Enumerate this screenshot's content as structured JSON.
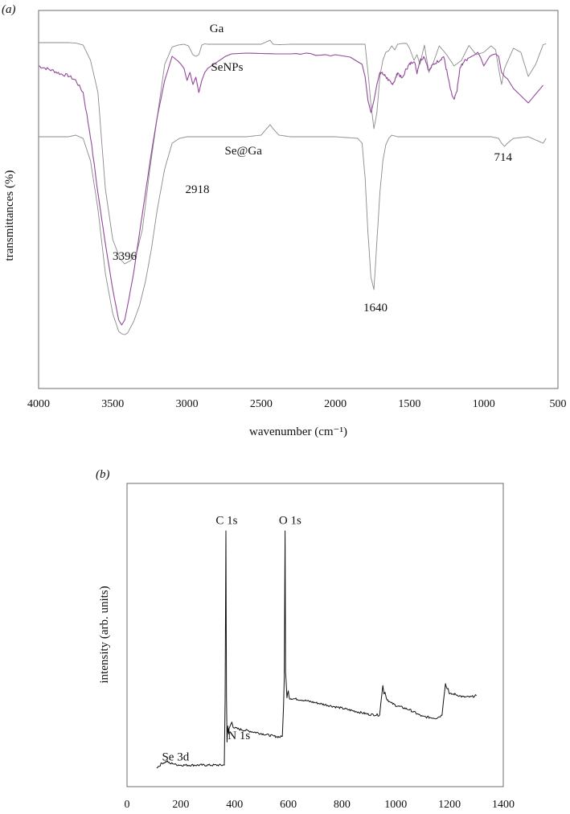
{
  "chart_data": [
    {
      "type": "line",
      "panel_label": "(a)",
      "xlabel": "wavenumber (cm⁻¹)",
      "ylabel": "transmittances (%)",
      "xlim": [
        4000,
        500
      ],
      "x_reversed": true,
      "xticks": [
        4000,
        3500,
        3000,
        2500,
        2000,
        1500,
        1000,
        500
      ],
      "series": [
        {
          "name": "Ga",
          "color": "#8a8a8a",
          "x": [
            4000,
            3900,
            3800,
            3750,
            3700,
            3650,
            3600,
            3550,
            3500,
            3450,
            3420,
            3380,
            3340,
            3300,
            3250,
            3200,
            3150,
            3100,
            3060,
            3020,
            2990,
            2960,
            2940,
            2920,
            2900,
            2880,
            2860,
            2500,
            2440,
            2420,
            2380,
            2300,
            2000,
            1800,
            1780,
            1760,
            1740,
            1720,
            1700,
            1680,
            1660,
            1640,
            1620,
            1600,
            1580,
            1550,
            1520,
            1500,
            1470,
            1450,
            1430,
            1400,
            1370,
            1340,
            1300,
            1250,
            1200,
            1150,
            1100,
            1050,
            1000,
            950,
            920,
            900,
            880,
            860,
            800,
            750,
            700,
            650,
            600,
            580
          ],
          "y": [
            7,
            7,
            7,
            6.5,
            4,
            -15,
            -55,
            -175,
            -238,
            -262,
            -268,
            -264,
            -255,
            -225,
            -150,
            -85,
            -20,
            1.5,
            4,
            5,
            3,
            -8,
            -10,
            -8,
            4,
            5.5,
            5,
            5,
            10,
            5,
            4.5,
            5,
            5,
            5,
            -30,
            -70,
            -100,
            -80,
            -35,
            -15,
            -5,
            -3,
            3,
            -2,
            5,
            6,
            6,
            0,
            -15,
            -8,
            -20,
            4,
            -30,
            -18,
            3,
            -8,
            -22,
            -15,
            3.5,
            -8,
            -5,
            3,
            -2,
            -25,
            -45,
            -25,
            0,
            -5,
            -35,
            -20,
            4.5,
            5.5
          ]
        },
        {
          "name": "SeNPs",
          "color": "#93479a",
          "x": [
            4000,
            3950,
            3900,
            3850,
            3800,
            3750,
            3700,
            3650,
            3600,
            3550,
            3500,
            3460,
            3440,
            3420,
            3400,
            3360,
            3320,
            3280,
            3240,
            3200,
            3150,
            3100,
            3060,
            3040,
            3020,
            3000,
            2980,
            2960,
            2940,
            2920,
            2900,
            2880,
            2860,
            2820,
            2780,
            2740,
            2700,
            2600,
            2400,
            2200,
            2000,
            1900,
            1820,
            1800,
            1780,
            1760,
            1740,
            1720,
            1700,
            1680,
            1660,
            1640,
            1620,
            1600,
            1580,
            1550,
            1520,
            1500,
            1470,
            1450,
            1430,
            1400,
            1370,
            1340,
            1300,
            1270,
            1250,
            1220,
            1200,
            1180,
            1160,
            1140,
            1100,
            1060,
            1040,
            1020,
            1000,
            980,
            960,
            940,
            920,
            900,
            880,
            860,
            840,
            800,
            700,
            600
          ],
          "y": [
            -22,
            -25,
            -28,
            -32,
            -34,
            -40,
            -55,
            -110,
            -180,
            -243,
            -300,
            -338,
            -344,
            -338,
            -320,
            -280,
            -230,
            -180,
            -130,
            -85,
            -40,
            -10,
            -16,
            -20,
            -25,
            -40,
            -30,
            -45,
            -36,
            -55,
            -40,
            -30,
            -25,
            -20,
            -15,
            -10,
            -7,
            -6,
            -7,
            -7,
            -8,
            -11,
            -20,
            -35,
            -65,
            -80,
            -65,
            -45,
            -30,
            -32,
            -35,
            -40,
            -45,
            -40,
            -30,
            -38,
            -25,
            -20,
            -15,
            -30,
            -15,
            -10,
            -28,
            -20,
            -15,
            -10,
            -28,
            -55,
            -65,
            -52,
            -25,
            -18,
            -12,
            -8,
            -5,
            -12,
            -22,
            -16,
            -10,
            -8,
            -7,
            -10,
            -30,
            -35,
            -38,
            -50,
            -68,
            -46
          ]
        },
        {
          "name": "Se@Ga",
          "color": "#8a8a8a",
          "x": [
            4000,
            3800,
            3750,
            3700,
            3650,
            3600,
            3550,
            3500,
            3460,
            3440,
            3420,
            3400,
            3360,
            3320,
            3280,
            3240,
            3200,
            3150,
            3100,
            3050,
            3000,
            2900,
            2800,
            2600,
            2500,
            2440,
            2420,
            2380,
            2300,
            2000,
            1850,
            1820,
            1800,
            1780,
            1760,
            1740,
            1720,
            1700,
            1680,
            1660,
            1640,
            1620,
            1600,
            1580,
            1550,
            1500,
            1450,
            1400,
            1300,
            1200,
            1100,
            1000,
            950,
            900,
            880,
            860,
            840,
            800,
            700,
            600,
            580
          ],
          "y": [
            -110,
            -110,
            -108,
            -112,
            -140,
            -200,
            -280,
            -330,
            -352,
            -355,
            -356,
            -354,
            -340,
            -320,
            -290,
            -250,
            -200,
            -150,
            -118,
            -112,
            -110,
            -110,
            -110,
            -110,
            -108,
            -95,
            -100,
            -108,
            -110,
            -110,
            -112,
            -118,
            -160,
            -230,
            -285,
            -300,
            -240,
            -180,
            -140,
            -120,
            -112,
            -108,
            -109,
            -110,
            -110,
            -110,
            -110,
            -110,
            -110,
            -110,
            -110,
            -110,
            -110,
            -112,
            -118,
            -122,
            -118,
            -112,
            -110,
            -118,
            -112
          ]
        }
      ],
      "annotations": [
        {
          "text": "Ga",
          "x": 2800,
          "y": 20
        },
        {
          "text": "SeNPs",
          "x": 2730,
          "y": -28
        },
        {
          "text": "Se@Ga",
          "x": 2620,
          "y": -132
        },
        {
          "text": "2918",
          "x": 2930,
          "y": -180
        },
        {
          "text": "3396",
          "x": 3420,
          "y": -263
        },
        {
          "text": "1640",
          "x": 1730,
          "y": -327
        },
        {
          "text": "714",
          "x": 870,
          "y": -140
        }
      ],
      "grid": false
    },
    {
      "type": "line",
      "panel_label": "(b)",
      "xlabel": "",
      "ylabel": "intensity (arb. units)",
      "xlim": [
        0,
        1400
      ],
      "ylim": [
        0,
        1000
      ],
      "xticks": [
        0,
        200,
        400,
        600,
        800,
        1000,
        1200,
        1400
      ],
      "series": [
        {
          "name": "",
          "color": "#111111",
          "x": [
            110,
            120,
            130,
            140,
            150,
            160,
            170,
            180,
            200,
            250,
            300,
            340,
            360,
            362,
            365,
            368,
            370,
            372,
            375,
            378,
            380,
            385,
            390,
            395,
            400,
            420,
            450,
            500,
            550,
            570,
            578,
            582,
            585,
            588,
            590,
            595,
            600,
            605,
            610,
            650,
            700,
            800,
            900,
            940,
            948,
            952,
            956,
            960,
            965,
            970,
            980,
            1000,
            1050,
            1100,
            1150,
            1172,
            1180,
            1185,
            1190,
            1195,
            1200,
            1220,
            1250,
            1280,
            1300
          ],
          "y": [
            40,
            45,
            55,
            58,
            62,
            52,
            55,
            50,
            48,
            48,
            48,
            48,
            48,
            48,
            280,
            880,
            290,
            130,
            190,
            160,
            175,
            190,
            200,
            185,
            180,
            175,
            170,
            160,
            150,
            148,
            150,
            250,
            360,
            880,
            380,
            290,
            310,
            285,
            285,
            280,
            270,
            250,
            228,
            226,
            300,
            330,
            300,
            310,
            285,
            280,
            270,
            260,
            245,
            220,
            215,
            225,
            300,
            340,
            320,
            320,
            300,
            300,
            290,
            290,
            295
          ],
          "noise": 4
        }
      ],
      "annotations": [
        {
          "text": "C 1s",
          "x": 330,
          "y": 905
        },
        {
          "text": "O 1s",
          "x": 565,
          "y": 905
        },
        {
          "text": "N 1s",
          "x": 375,
          "y": 140
        },
        {
          "text": "Se 3d",
          "x": 130,
          "y": 65
        }
      ],
      "grid": false
    }
  ]
}
